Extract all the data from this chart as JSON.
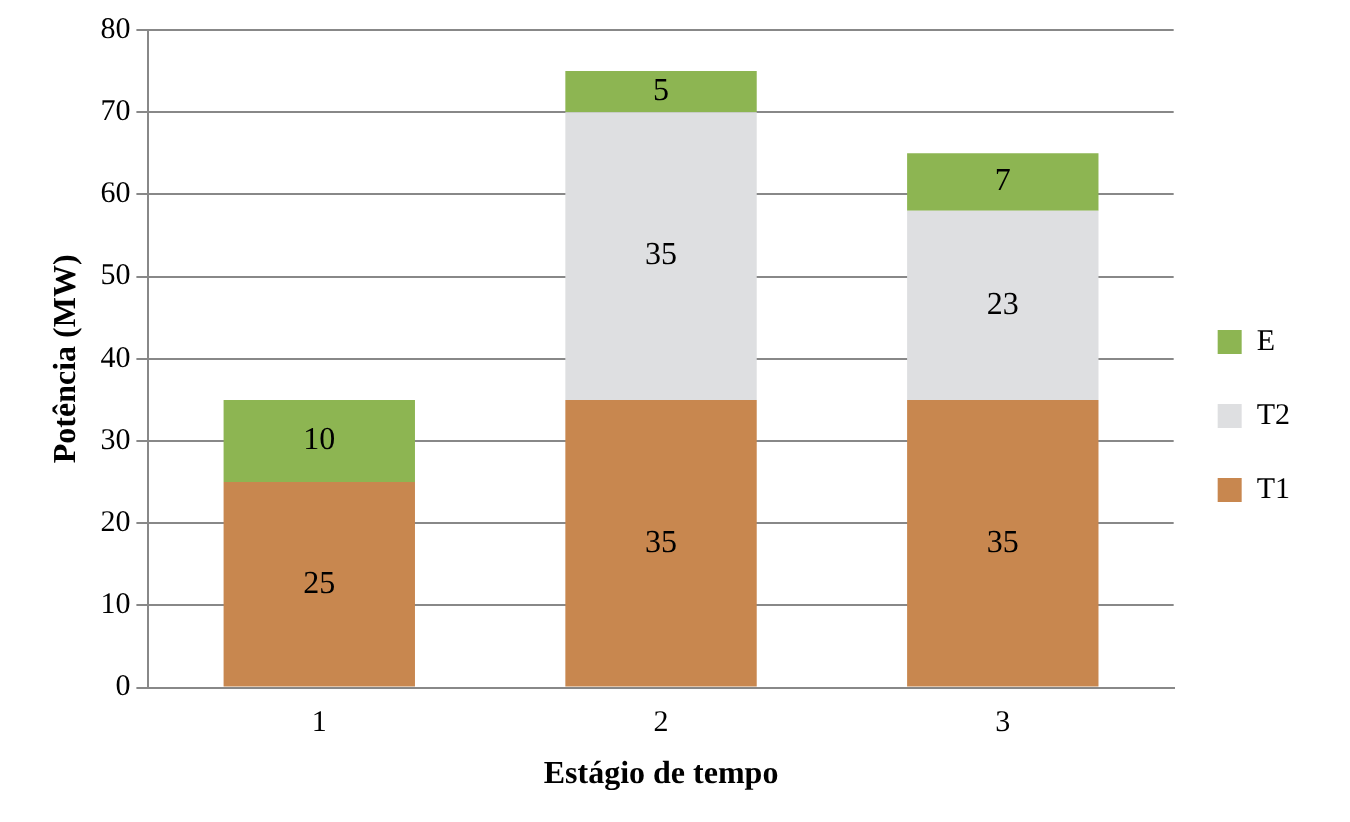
{
  "chart_data": {
    "type": "bar",
    "stacked": true,
    "xlabel": "Estágio de tempo",
    "ylabel": "Potência (MW)",
    "categories": [
      "1",
      "2",
      "3"
    ],
    "series": [
      {
        "name": "T1",
        "color": "#c8874f",
        "values": [
          25,
          35,
          35
        ]
      },
      {
        "name": "T2",
        "color": "#dedfe1",
        "values": [
          null,
          35,
          23
        ]
      },
      {
        "name": "E",
        "color": "#8db552",
        "values": [
          10,
          5,
          7
        ]
      }
    ],
    "ylim": [
      0,
      80
    ],
    "yticks": [
      0,
      10,
      20,
      30,
      40,
      50,
      60,
      70,
      80
    ],
    "grid": "y",
    "legend": "right",
    "data_labels": true
  }
}
